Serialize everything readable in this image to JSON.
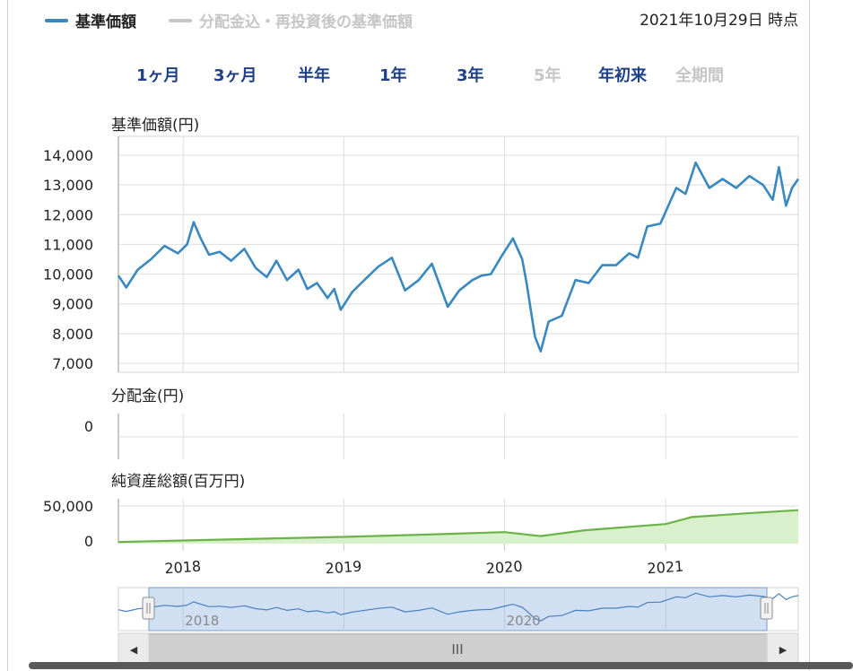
{
  "legend": {
    "nav_label": "基準価額",
    "nav_color": "#3a88c0",
    "reinvest_label": "分配金込・再投資後の基準価額",
    "reinvest_color": "#c6c6c6"
  },
  "as_of": "2021年10月29日 時点",
  "range_buttons": [
    {
      "label": "1ヶ月",
      "enabled": true
    },
    {
      "label": "3ヶ月",
      "enabled": true
    },
    {
      "label": "半年",
      "enabled": true
    },
    {
      "label": "1年",
      "enabled": true
    },
    {
      "label": "3年",
      "enabled": true
    },
    {
      "label": "5年",
      "enabled": false
    },
    {
      "label": "年初来",
      "enabled": true
    },
    {
      "label": "全期間",
      "enabled": false
    }
  ],
  "panels": {
    "nav_title": "基準価額(円)",
    "dist_title": "分配金(円)",
    "assets_title": "純資産総額(百万円)"
  },
  "navigator": {
    "scroll_grip": "III",
    "left_arrow": "◀",
    "right_arrow": "▶"
  },
  "chart_data": {
    "type": "line",
    "x_axis": {
      "type": "date",
      "range": [
        "2017-08-07",
        "2021-10-29"
      ],
      "tick_labels": [
        "2018",
        "2019",
        "2020",
        "2021"
      ],
      "tick_values": [
        "2018-01-01",
        "2019-01-01",
        "2020-01-01",
        "2021-01-01"
      ]
    },
    "nav": {
      "ylim": [
        7000,
        14000
      ],
      "y_ticks": [
        "7,000",
        "8,000",
        "9,000",
        "10,000",
        "11,000",
        "12,000",
        "13,000",
        "14,000"
      ],
      "y_tick_values": [
        7000,
        8000,
        9000,
        10000,
        11000,
        12000,
        13000,
        14000
      ],
      "grid": true,
      "series": [
        {
          "color": "#3a88c0",
          "x": [
            "2017-08-07",
            "2017-08-25",
            "2017-09-20",
            "2017-10-20",
            "2017-11-20",
            "2017-12-20",
            "2018-01-10",
            "2018-01-25",
            "2018-02-10",
            "2018-03-01",
            "2018-03-25",
            "2018-04-20",
            "2018-05-20",
            "2018-06-15",
            "2018-07-10",
            "2018-08-01",
            "2018-08-25",
            "2018-09-20",
            "2018-10-10",
            "2018-11-01",
            "2018-11-25",
            "2018-12-10",
            "2018-12-25",
            "2019-01-20",
            "2019-02-20",
            "2019-03-20",
            "2019-04-20",
            "2019-05-20",
            "2019-06-20",
            "2019-07-20",
            "2019-08-25",
            "2019-09-20",
            "2019-10-20",
            "2019-11-10",
            "2019-12-01",
            "2019-12-25",
            "2020-01-20",
            "2020-02-10",
            "2020-02-20",
            "2020-03-10",
            "2020-03-23",
            "2020-04-10",
            "2020-05-10",
            "2020-06-10",
            "2020-07-10",
            "2020-08-10",
            "2020-09-10",
            "2020-10-10",
            "2020-10-30",
            "2020-11-20",
            "2020-12-20",
            "2021-01-10",
            "2021-01-25",
            "2021-02-15",
            "2021-03-10",
            "2021-04-10",
            "2021-05-10",
            "2021-06-10",
            "2021-07-10",
            "2021-08-10",
            "2021-09-01",
            "2021-09-15",
            "2021-10-01",
            "2021-10-15",
            "2021-10-29"
          ],
          "values": [
            9950,
            9550,
            10150,
            10500,
            10950,
            10700,
            11000,
            11750,
            11200,
            10650,
            10750,
            10450,
            10850,
            10200,
            9900,
            10450,
            9800,
            10150,
            9500,
            9700,
            9200,
            9500,
            8800,
            9400,
            9850,
            10250,
            10550,
            9450,
            9800,
            10350,
            8900,
            9450,
            9800,
            9950,
            10000,
            10600,
            11200,
            10500,
            9700,
            7900,
            7400,
            8400,
            8600,
            9800,
            9700,
            10300,
            10300,
            10700,
            10550,
            11600,
            11700,
            12400,
            12900,
            12700,
            13750,
            12900,
            13200,
            12900,
            13300,
            13000,
            12500,
            13600,
            12300,
            12900,
            13200
          ]
        }
      ]
    },
    "distribution": {
      "y_ticks": [
        "0"
      ],
      "y_tick_values": [
        0
      ],
      "values": [
        0
      ]
    },
    "net_assets": {
      "ylim": [
        0,
        60000
      ],
      "y_ticks": [
        "0",
        "50,000"
      ],
      "y_tick_values": [
        0,
        50000
      ],
      "series": [
        {
          "color": "#6cb34a",
          "fill": "#d9f0cc",
          "x": [
            "2017-08-07",
            "2018-01-01",
            "2018-07-01",
            "2019-01-01",
            "2019-07-01",
            "2020-01-01",
            "2020-03-23",
            "2020-07-01",
            "2021-01-01",
            "2021-03-01",
            "2021-07-01",
            "2021-10-29"
          ],
          "values": [
            1000,
            3000,
            5500,
            8000,
            11000,
            14500,
            9000,
            17000,
            25500,
            35000,
            40000,
            44500
          ]
        }
      ]
    }
  }
}
